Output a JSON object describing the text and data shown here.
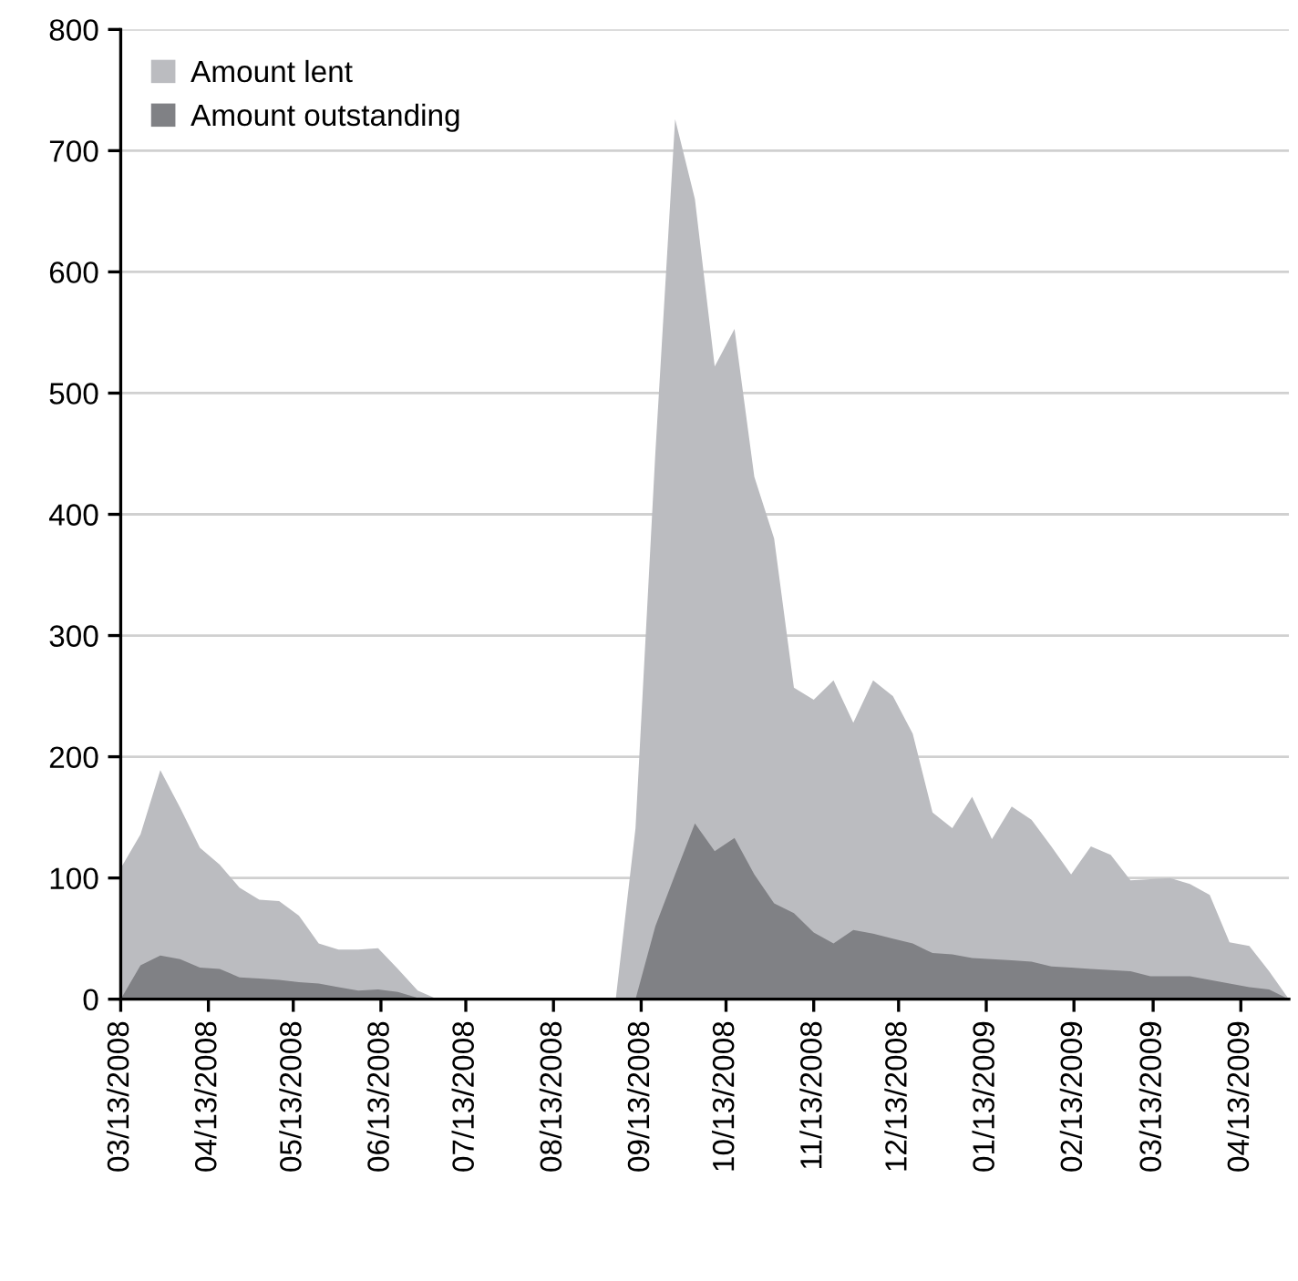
{
  "chart_data": {
    "type": "area",
    "x": [
      "2008-03-13",
      "2008-03-20",
      "2008-03-27",
      "2008-04-03",
      "2008-04-10",
      "2008-04-17",
      "2008-04-24",
      "2008-05-01",
      "2008-05-08",
      "2008-05-15",
      "2008-05-22",
      "2008-05-29",
      "2008-06-05",
      "2008-06-12",
      "2008-06-19",
      "2008-06-26",
      "2008-07-03",
      "2008-07-10",
      "2008-07-17",
      "2008-07-24",
      "2008-07-31",
      "2008-08-07",
      "2008-08-14",
      "2008-08-21",
      "2008-08-28",
      "2008-09-04",
      "2008-09-11",
      "2008-09-18",
      "2008-09-25",
      "2008-10-02",
      "2008-10-09",
      "2008-10-16",
      "2008-10-23",
      "2008-10-30",
      "2008-11-06",
      "2008-11-13",
      "2008-11-20",
      "2008-11-27",
      "2008-12-04",
      "2008-12-11",
      "2008-12-18",
      "2008-12-25",
      "2009-01-01",
      "2009-01-08",
      "2009-01-15",
      "2009-01-22",
      "2009-01-29",
      "2009-02-05",
      "2009-02-12",
      "2009-02-19",
      "2009-02-26",
      "2009-03-05",
      "2009-03-12",
      "2009-03-19",
      "2009-03-26",
      "2009-04-02",
      "2009-04-09",
      "2009-04-16",
      "2009-04-23",
      "2009-04-30"
    ],
    "series": [
      {
        "name": "Amount lent",
        "color": "#bbbcc0",
        "values": [
          108,
          136,
          189,
          158,
          125,
          111,
          92,
          82,
          81,
          69,
          46,
          41,
          41,
          42,
          25,
          7,
          0,
          0,
          0,
          0,
          0,
          0,
          0,
          0,
          0,
          0,
          141,
          450,
          726,
          660,
          522,
          553,
          431,
          380,
          257,
          247,
          263,
          228,
          263,
          250,
          219,
          154,
          141,
          167,
          132,
          159,
          148,
          126,
          103,
          126,
          119,
          98,
          99,
          100,
          95,
          86,
          47,
          44,
          23,
          0
        ]
      },
      {
        "name": "Amount outstanding",
        "color": "#808185",
        "values": [
          0,
          28,
          36,
          33,
          26,
          25,
          18,
          17,
          16,
          14,
          13,
          10,
          7,
          8,
          6,
          1,
          0,
          0,
          0,
          0,
          0,
          0,
          0,
          0,
          0,
          0,
          0,
          60,
          103,
          145,
          122,
          133,
          103,
          79,
          71,
          55,
          46,
          57,
          54,
          50,
          46,
          38,
          37,
          34,
          33,
          32,
          31,
          27,
          26,
          25,
          24,
          23,
          19,
          19,
          19,
          16,
          13,
          10,
          8,
          0
        ]
      }
    ],
    "xlim": [
      "2008-03-13",
      "2009-04-30"
    ],
    "xticks": [
      {
        "value": "2008-03-13",
        "label": "03/13/2008"
      },
      {
        "value": "2008-04-13",
        "label": "04/13/2008"
      },
      {
        "value": "2008-05-13",
        "label": "05/13/2008"
      },
      {
        "value": "2008-06-13",
        "label": "06/13/2008"
      },
      {
        "value": "2008-07-13",
        "label": "07/13/2008"
      },
      {
        "value": "2008-08-13",
        "label": "08/13/2008"
      },
      {
        "value": "2008-09-13",
        "label": "09/13/2008"
      },
      {
        "value": "2008-10-13",
        "label": "10/13/2008"
      },
      {
        "value": "2008-11-13",
        "label": "11/13/2008"
      },
      {
        "value": "2008-12-13",
        "label": "12/13/2008"
      },
      {
        "value": "2009-01-13",
        "label": "01/13/2009"
      },
      {
        "value": "2009-02-13",
        "label": "02/13/2009"
      },
      {
        "value": "2009-03-13",
        "label": "03/13/2009"
      },
      {
        "value": "2009-04-13",
        "label": "04/13/2009"
      }
    ],
    "ylim": [
      0,
      800
    ],
    "yticks": [
      0,
      100,
      200,
      300,
      400,
      500,
      600,
      700,
      800
    ],
    "grid": "y",
    "legend": "top left"
  }
}
